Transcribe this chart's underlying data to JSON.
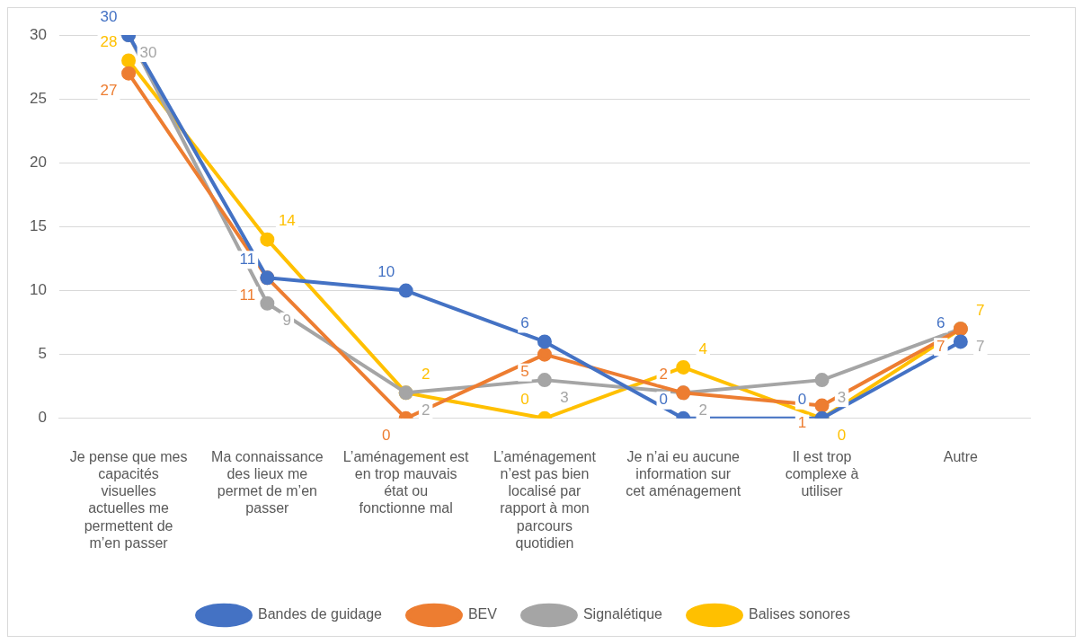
{
  "chart_data": {
    "type": "line",
    "categories": [
      "Je pense que mes capacités visuelles actuelles me permettent de m’en passer",
      "Ma connaissance des lieux me permet de m’en passer",
      "L’aménagement est en trop mauvais état ou fonctionne mal",
      "L’aménagement n’est pas bien localisé par rapport à mon parcours quotidien",
      "Je n’ai eu aucune information sur cet aménagement",
      "Il est trop complexe à utiliser",
      "Autre"
    ],
    "series": [
      {
        "name": "Bandes de guidage",
        "color": "#4472c4",
        "values": [
          30,
          11,
          10,
          6,
          0,
          0,
          6
        ]
      },
      {
        "name": "BEV",
        "color": "#ed7d31",
        "values": [
          27,
          11,
          0,
          5,
          2,
          1,
          7
        ]
      },
      {
        "name": "Signalétique",
        "color": "#a5a5a5",
        "values": [
          30,
          9,
          2,
          3,
          2,
          3,
          7
        ]
      },
      {
        "name": "Balises sonores",
        "color": "#ffc000",
        "values": [
          28,
          14,
          2,
          0,
          4,
          0,
          7
        ]
      }
    ],
    "ylim": [
      0,
      30
    ],
    "yticks": [
      0,
      5,
      10,
      15,
      20,
      25,
      30
    ],
    "grid": "y",
    "legend": "bottom",
    "marker": "circle",
    "line_style": "solid",
    "data_labels": true
  }
}
